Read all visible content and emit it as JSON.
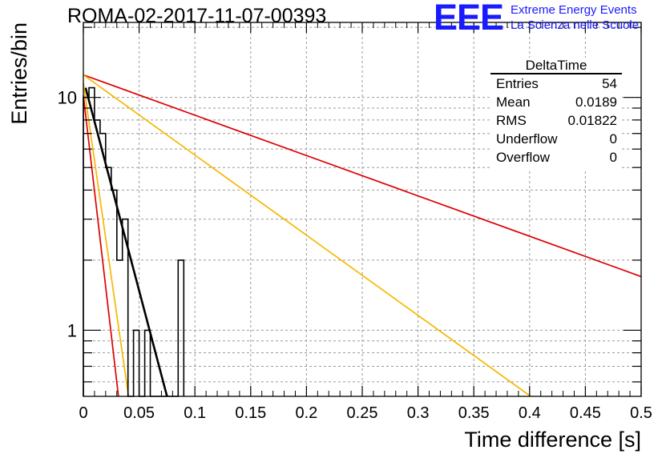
{
  "header": {
    "run_title": "ROMA-02-2017-11-07-00393",
    "logo_letters": "EEE",
    "logo_line1": "Extreme Energy Events",
    "logo_line2": "La Scienza nelle Scuole"
  },
  "stats_box": {
    "title": "DeltaTime",
    "rows": [
      {
        "label": "Entries",
        "value": "54"
      },
      {
        "label": "Mean",
        "value": "0.0189"
      },
      {
        "label": "RMS",
        "value": "0.01822"
      },
      {
        "label": "Underflow",
        "value": "0"
      },
      {
        "label": "Overflow",
        "value": "0"
      }
    ]
  },
  "colors": {
    "histogram": "#000000",
    "fit_black": "#000000",
    "fit_red": "#dd0000",
    "fit_orange": "#f5b800",
    "grid": "#9a9a9a",
    "logo_blue": "#1a1aff"
  },
  "chart_data": {
    "type": "histogram",
    "title": "ROMA-02-2017-11-07-00393",
    "xlabel": "Time difference [s]",
    "ylabel": "Entries/bin",
    "xlim": [
      0,
      0.5
    ],
    "ylim": [
      0.52,
      21
    ],
    "y_scale": "log",
    "grid": true,
    "x_ticks": [
      "0",
      "0.05",
      "0.1",
      "0.15",
      "0.2",
      "0.25",
      "0.3",
      "0.35",
      "0.4",
      "0.45",
      "0.5"
    ],
    "x_tick_values": [
      0,
      0.05,
      0.1,
      0.15,
      0.2,
      0.25,
      0.3,
      0.35,
      0.4,
      0.45,
      0.5
    ],
    "y_ticks": [
      "1",
      "10"
    ],
    "y_tick_values": [
      1,
      10
    ],
    "bin_width": 0.005,
    "bins": [
      {
        "x0": 0.0,
        "count": 10
      },
      {
        "x0": 0.005,
        "count": 11
      },
      {
        "x0": 0.01,
        "count": 8
      },
      {
        "x0": 0.015,
        "count": 7
      },
      {
        "x0": 0.02,
        "count": 5
      },
      {
        "x0": 0.025,
        "count": 4
      },
      {
        "x0": 0.03,
        "count": 2
      },
      {
        "x0": 0.035,
        "count": 3
      },
      {
        "x0": 0.04,
        "count": 0
      },
      {
        "x0": 0.045,
        "count": 1
      },
      {
        "x0": 0.05,
        "count": 0
      },
      {
        "x0": 0.055,
        "count": 1
      },
      {
        "x0": 0.06,
        "count": 0
      },
      {
        "x0": 0.065,
        "count": 0
      },
      {
        "x0": 0.07,
        "count": 0
      },
      {
        "x0": 0.075,
        "count": 0
      },
      {
        "x0": 0.08,
        "count": 0
      },
      {
        "x0": 0.085,
        "count": 2
      }
    ],
    "fit_lines": [
      {
        "color": "#000000",
        "points": [
          [
            0.002,
            11.0
          ],
          [
            0.075,
            0.52
          ]
        ]
      },
      {
        "color": "#dd0000",
        "points": [
          [
            0.0,
            12.5
          ],
          [
            0.5,
            1.7
          ]
        ]
      },
      {
        "color": "#f5b800",
        "points": [
          [
            0.0,
            12.5
          ],
          [
            0.401,
            0.52
          ]
        ]
      },
      {
        "color": "#dd0000",
        "points": [
          [
            0.0,
            10.2
          ],
          [
            0.0315,
            0.52
          ]
        ]
      },
      {
        "color": "#f5b800",
        "points": [
          [
            0.0,
            11.5
          ],
          [
            0.0405,
            0.52
          ]
        ]
      }
    ]
  }
}
